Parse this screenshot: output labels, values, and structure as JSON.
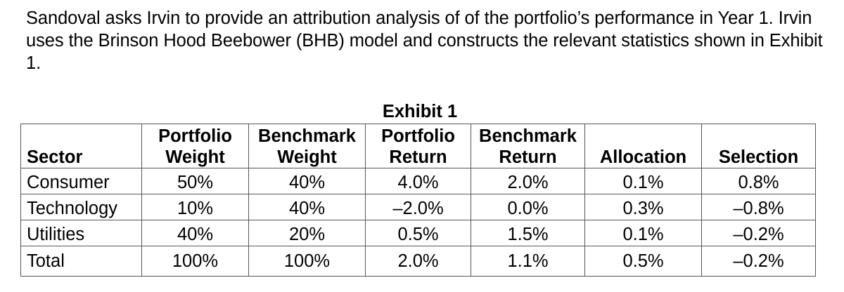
{
  "intro": "Sandoval asks Irvin to provide an attribution analysis of of the portfolio’s performance in Year 1. Irvin uses the Brinson Hood Beebower (BHB) model and constructs the relevant statistics shown in Exhibit 1.",
  "exhibit": {
    "title": "Exhibit 1",
    "headers": [
      {
        "line1": "",
        "line2": "Sector"
      },
      {
        "line1": "Portfolio",
        "line2": "Weight"
      },
      {
        "line1": "Benchmark",
        "line2": "Weight"
      },
      {
        "line1": "Portfolio",
        "line2": "Return"
      },
      {
        "line1": "Benchmark",
        "line2": "Return"
      },
      {
        "line1": "",
        "line2": "Allocation"
      },
      {
        "line1": "",
        "line2": "Selection"
      }
    ],
    "rows": [
      [
        "Consumer",
        "50%",
        "40%",
        "4.0%",
        "2.0%",
        "0.1%",
        "0.8%"
      ],
      [
        "Technology",
        "10%",
        "40%",
        "–2.0%",
        "0.0%",
        "0.3%",
        "–0.8%"
      ],
      [
        "Utilities",
        "40%",
        "20%",
        "0.5%",
        "1.5%",
        "0.1%",
        "–0.2%"
      ],
      [
        "Total",
        "100%",
        "100%",
        "2.0%",
        "1.1%",
        "0.5%",
        "–0.2%"
      ]
    ]
  }
}
